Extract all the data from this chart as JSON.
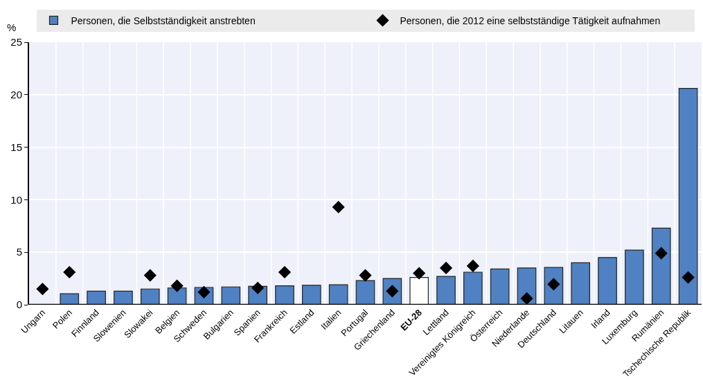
{
  "chart_data": {
    "type": "bar",
    "ylabel": "%",
    "categories": [
      "Ungarn",
      "Polen",
      "Finnland",
      "Slowenien",
      "Slowakei",
      "Belgien",
      "Schweden",
      "Bulgarien",
      "Spanien",
      "Frankreich",
      "Estland",
      "Italien",
      "Portugal",
      "Griechenland",
      "EU-28",
      "Lettland",
      "Vereinigtes Königreich",
      "Österreich",
      "Niederlande",
      "Deutschland",
      "Litauen",
      "Irland",
      "Luxemburg",
      "Rumänien",
      "Tschechische Republik"
    ],
    "series": [
      {
        "name": "Personen, die Selbstständigkeit anstrebten",
        "color": "#4f81c3",
        "colors": [
          "#4f81c3",
          "#4f81c3",
          "#4f81c3",
          "#4f81c3",
          "#4f81c3",
          "#4f81c3",
          "#4f81c3",
          "#4f81c3",
          "#4f81c3",
          "#4f81c3",
          "#4f81c3",
          "#4f81c3",
          "#4f81c3",
          "#4f81c3",
          "#ffffff",
          "#4f81c3",
          "#4f81c3",
          "#4f81c3",
          "#4f81c3",
          "#4f81c3",
          "#4f81c3",
          "#4f81c3",
          "#4f81c3",
          "#4f81c3",
          "#4f81c3"
        ],
        "values": [
          null,
          1.05,
          1.3,
          1.3,
          1.5,
          1.6,
          1.65,
          1.7,
          1.75,
          1.8,
          1.85,
          1.9,
          2.3,
          2.5,
          2.6,
          2.7,
          3.1,
          3.4,
          3.5,
          3.55,
          4.0,
          4.5,
          5.2,
          7.3,
          20.6
        ]
      },
      {
        "name": "Personen, die 2012 eine selbstständige Tätigkeit aufnahmen",
        "type": "scatter",
        "color": "#000000",
        "values": [
          1.5,
          3.1,
          null,
          null,
          2.8,
          1.8,
          1.2,
          null,
          1.6,
          3.1,
          null,
          9.3,
          2.8,
          1.3,
          3.0,
          3.5,
          3.7,
          null,
          0.6,
          1.95,
          null,
          null,
          null,
          4.9,
          2.6
        ]
      }
    ],
    "ylim": [
      0,
      25
    ],
    "yticks": [
      0,
      5,
      10,
      15,
      20,
      25
    ],
    "grid": true,
    "legend": "top",
    "marker": "diamond"
  }
}
